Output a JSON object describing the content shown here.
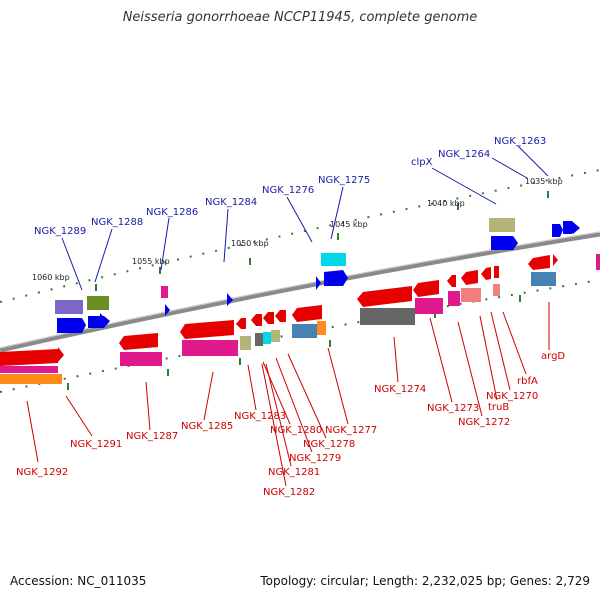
{
  "title": "Neisseria gonorrhoeae NCCP11945, complete genome",
  "footer": {
    "accession": "Accession: NC_011035",
    "summary": "Topology: circular; Length: 2,232,025 bp; Genes: 2,729"
  },
  "colors": {
    "backbone": "#8a8a8a",
    "tick": "#2e7d32",
    "top_label": "#1a1aa6",
    "bottom_label": "#cc0000",
    "red": "#e60000",
    "magenta": "#e0198c",
    "orange": "#ff8c1a",
    "blue": "#0000ee",
    "purple": "#7b68c8",
    "olive": "#6b8e23",
    "cyan": "#00d8e8",
    "khaki": "#b5b27a",
    "steel": "#4682b4",
    "gray": "#666666",
    "salmon": "#f08080"
  },
  "scale_labels": [
    "1060 kbp",
    "1055 kbp",
    "1050 kbp",
    "1045 kbp",
    "1040 kbp",
    "1035 kbp"
  ],
  "top_labels": [
    "NGK_1289",
    "NGK_1288",
    "NGK_1286",
    "NGK_1284",
    "NGK_1276",
    "NGK_1275",
    "clpX",
    "NGK_1264",
    "NGK_1263"
  ],
  "bottom_labels": [
    "NGK_1292",
    "NGK_1291",
    "NGK_1287",
    "NGK_1285",
    "NGK_1283",
    "NGK_1280",
    "NGK_1281",
    "NGK_1282",
    "NGK_1279",
    "NGK_1278",
    "NGK_1277",
    "NGK_1274",
    "NGK_1273",
    "NGK_1272",
    "truB",
    "NGK_1270",
    "rbfA",
    "argD"
  ]
}
